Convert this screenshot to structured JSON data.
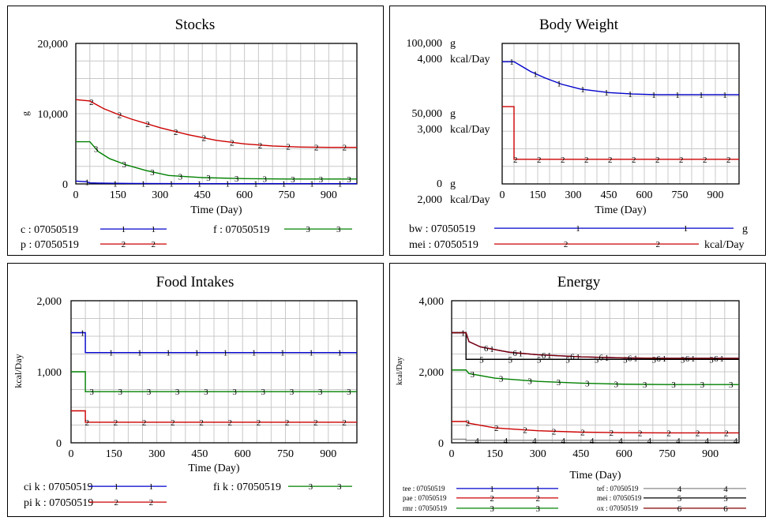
{
  "chart_data": [
    {
      "id": "stocks",
      "type": "line",
      "title": "Stocks",
      "xlabel": "Time (Day)",
      "x_range": [
        0,
        1000
      ],
      "x_ticks": [
        "0",
        "150",
        "300",
        "450",
        "600",
        "750",
        "900"
      ],
      "x_tick_values": [
        0,
        150,
        300,
        450,
        600,
        750,
        900
      ],
      "y_axes": [
        {
          "unit": "g",
          "range": [
            0,
            20000
          ],
          "ticks": [
            "20,000",
            "10,000",
            "0"
          ],
          "tick_values": [
            20000,
            10000,
            0
          ]
        }
      ],
      "grid": true,
      "series": [
        {
          "name": "c : 07050519",
          "marker": "1",
          "color": "#0000cc",
          "axis": 0,
          "x": [
            0,
            40,
            50,
            100,
            200,
            300,
            450,
            600,
            750,
            900,
            1000
          ],
          "y": [
            400,
            300,
            150,
            100,
            60,
            50,
            40,
            35,
            35,
            35,
            35
          ]
        },
        {
          "name": "p : 07050519",
          "marker": "2",
          "color": "#cc0000",
          "axis": 0,
          "x": [
            0,
            50,
            100,
            150,
            200,
            300,
            400,
            500,
            600,
            700,
            800,
            900,
            1000
          ],
          "y": [
            12000,
            11800,
            10700,
            9900,
            9200,
            8000,
            7000,
            6200,
            5700,
            5400,
            5250,
            5200,
            5200
          ]
        },
        {
          "name": "f : 07050519",
          "marker": "3",
          "color": "#008000",
          "axis": 0,
          "x": [
            0,
            50,
            80,
            120,
            180,
            250,
            330,
            450,
            600,
            750,
            900,
            1000
          ],
          "y": [
            6000,
            6000,
            4600,
            3600,
            2700,
            1900,
            1200,
            900,
            750,
            700,
            700,
            700
          ]
        }
      ]
    },
    {
      "id": "body-weight",
      "type": "line",
      "title": "Body Weight",
      "xlabel": "Time (Day)",
      "x_range": [
        0,
        1000
      ],
      "x_ticks": [
        "0",
        "150",
        "300",
        "450",
        "600",
        "750",
        "900"
      ],
      "x_tick_values": [
        0,
        150,
        300,
        450,
        600,
        750,
        900
      ],
      "y_axes": [
        {
          "unit": "g",
          "range": [
            0,
            100000
          ],
          "ticks": [
            "100,000",
            "50,000",
            "0"
          ],
          "tick_values": [
            100000,
            50000,
            0
          ]
        },
        {
          "unit": "kcal/Day",
          "range": [
            2000,
            4000
          ],
          "ticks": [
            "4,000",
            "3,000",
            "2,000"
          ],
          "tick_values": [
            4000,
            3000,
            2000
          ]
        }
      ],
      "grid": true,
      "series": [
        {
          "name": "bw : 07050519",
          "marker": "1",
          "color": "#0000cc",
          "axis": 0,
          "unit": "g",
          "x": [
            0,
            50,
            80,
            120,
            180,
            250,
            330,
            450,
            550,
            650,
            750,
            900,
            1000
          ],
          "y": [
            87000,
            87000,
            84000,
            80000,
            75500,
            71000,
            67500,
            65000,
            64000,
            63500,
            63500,
            63500,
            63500
          ]
        },
        {
          "name": "mei : 07050519",
          "marker": "2",
          "color": "#cc0000",
          "axis": 1,
          "unit": "kcal/Day",
          "x": [
            0,
            50,
            50,
            1000
          ],
          "y": [
            3100,
            3100,
            2350,
            2350
          ]
        }
      ]
    },
    {
      "id": "food-intakes",
      "type": "line",
      "title": "Food Intakes",
      "xlabel": "Time (Day)",
      "x_range": [
        0,
        1000
      ],
      "x_ticks": [
        "0",
        "150",
        "300",
        "450",
        "600",
        "750",
        "900"
      ],
      "x_tick_values": [
        0,
        150,
        300,
        450,
        600,
        750,
        900
      ],
      "y_axes": [
        {
          "unit": "kcal/Day",
          "range": [
            0,
            2000
          ],
          "ticks": [
            "2,000",
            "1,000",
            "0"
          ],
          "tick_values": [
            2000,
            1000,
            0
          ]
        }
      ],
      "grid": true,
      "series": [
        {
          "name": "ci k : 07050519",
          "marker": "1",
          "color": "#0000cc",
          "axis": 0,
          "x": [
            0,
            50,
            50,
            1000
          ],
          "y": [
            1550,
            1550,
            1270,
            1270
          ]
        },
        {
          "name": "pi k : 07050519",
          "marker": "2",
          "color": "#cc0000",
          "axis": 0,
          "x": [
            0,
            50,
            50,
            1000
          ],
          "y": [
            450,
            450,
            290,
            290
          ]
        },
        {
          "name": "fi k : 07050519",
          "marker": "3",
          "color": "#008000",
          "axis": 0,
          "x": [
            0,
            50,
            50,
            1000
          ],
          "y": [
            1000,
            1000,
            720,
            720
          ]
        }
      ]
    },
    {
      "id": "energy",
      "type": "line",
      "title": "Energy",
      "xlabel": "Time (Day)",
      "x_range": [
        0,
        1000
      ],
      "x_ticks": [
        "0",
        "150",
        "300",
        "450",
        "600",
        "750",
        "900"
      ],
      "x_tick_values": [
        0,
        150,
        300,
        450,
        600,
        750,
        900
      ],
      "y_axes": [
        {
          "unit": "kcal/Day",
          "range": [
            0,
            4000
          ],
          "ticks": [
            "4,000",
            "2,000",
            "0"
          ],
          "tick_values": [
            4000,
            2000,
            0
          ]
        }
      ],
      "grid": true,
      "series": [
        {
          "name": "tee : 07050519",
          "marker": "1",
          "color": "#0000cc",
          "axis": 0,
          "x": [
            0,
            50,
            60,
            100,
            200,
            300,
            450,
            600,
            750,
            900,
            1000
          ],
          "y": [
            3100,
            3100,
            2850,
            2700,
            2550,
            2480,
            2420,
            2390,
            2380,
            2380,
            2380
          ]
        },
        {
          "name": "pae : 07050519",
          "marker": "2",
          "color": "#cc0000",
          "axis": 0,
          "x": [
            0,
            50,
            60,
            150,
            300,
            450,
            600,
            750,
            900,
            1000
          ],
          "y": [
            600,
            600,
            550,
            420,
            340,
            300,
            285,
            280,
            280,
            280
          ]
        },
        {
          "name": "rmr : 07050519",
          "marker": "3",
          "color": "#008000",
          "axis": 0,
          "x": [
            0,
            50,
            60,
            150,
            300,
            450,
            600,
            750,
            900,
            1000
          ],
          "y": [
            2050,
            2050,
            1950,
            1820,
            1730,
            1680,
            1650,
            1640,
            1640,
            1640
          ]
        },
        {
          "name": "tef : 07050519",
          "marker": "4",
          "color": "#888888",
          "axis": 0,
          "x": [
            0,
            50,
            50,
            1000
          ],
          "y": [
            100,
            100,
            70,
            70
          ]
        },
        {
          "name": "mei : 07050519",
          "marker": "5",
          "color": "#000000",
          "axis": 0,
          "x": [
            0,
            50,
            50,
            1000
          ],
          "y": [
            3100,
            3100,
            2350,
            2350
          ]
        },
        {
          "name": "ox : 07050519",
          "marker": "6",
          "color": "#800000",
          "axis": 0,
          "x": [
            0,
            50,
            60,
            100,
            200,
            300,
            450,
            600,
            750,
            900,
            1000
          ],
          "y": [
            3100,
            3100,
            2850,
            2700,
            2550,
            2480,
            2420,
            2390,
            2380,
            2380,
            2380
          ]
        }
      ]
    }
  ]
}
